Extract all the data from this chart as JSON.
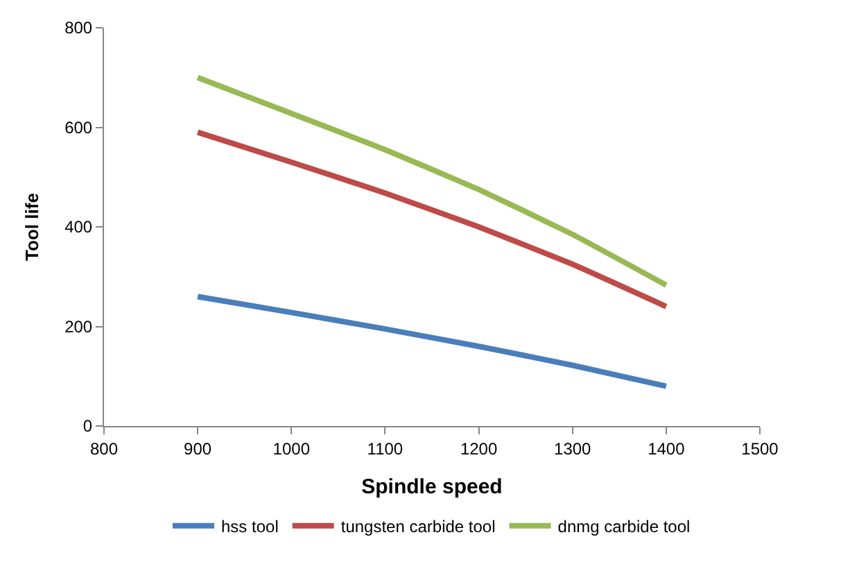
{
  "chart_data": {
    "type": "line",
    "xlabel": "Spindle speed",
    "ylabel": "Tool life",
    "x": [
      900,
      1000,
      1100,
      1200,
      1300,
      1400
    ],
    "series": [
      {
        "name": "hss tool",
        "color": "#4a7ebb",
        "values": [
          260,
          228,
          195,
          160,
          122,
          80
        ]
      },
      {
        "name": "tungsten carbide tool",
        "color": "#be4b48",
        "values": [
          590,
          530,
          468,
          400,
          325,
          240
        ]
      },
      {
        "name": "dnmg carbide tool",
        "color": "#98b954",
        "values": [
          700,
          628,
          555,
          475,
          385,
          283
        ]
      }
    ],
    "xlim": [
      800,
      1500
    ],
    "xticks": [
      800,
      900,
      1000,
      1100,
      1200,
      1300,
      1400,
      1500
    ],
    "ylim": [
      0,
      800
    ],
    "yticks": [
      0,
      200,
      400,
      600,
      800
    ],
    "grid": false,
    "legend": "bottom",
    "marker": "none",
    "line_style": "solid"
  }
}
